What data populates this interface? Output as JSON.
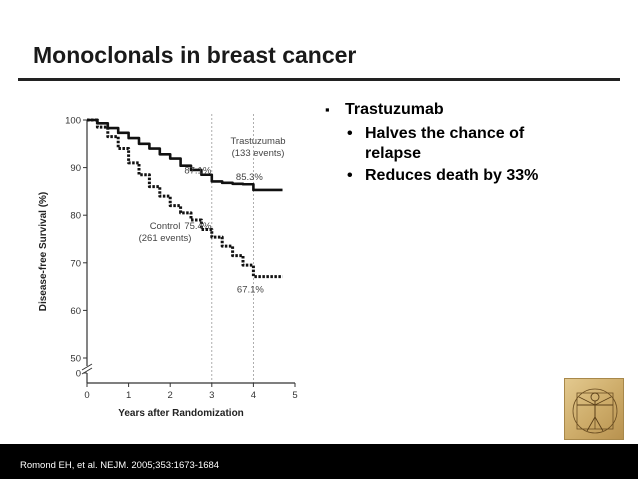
{
  "slide": {
    "title": "Monoclonals in breast cancer",
    "footer": "Romond EH, et al. NEJM. 2005;353:1673-1684"
  },
  "bullets": {
    "main": "Trastuzumab",
    "sub": [
      "Halves the chance of relapse",
      "Reduces death by 33%"
    ]
  },
  "thumbnail": {
    "icon": "vitruvian-man-sketch"
  },
  "colors": {
    "background": "#ffffff",
    "footer": "#000000",
    "text": "#1a1a1a"
  },
  "chart_data": {
    "type": "line",
    "xlabel": "Years after Randomization",
    "ylabel": "Disease-free Survival (%)",
    "xlim": [
      0,
      5
    ],
    "ylim": [
      50,
      100
    ],
    "x_ticks": [
      "0",
      "1",
      "2",
      "3",
      "4",
      "5"
    ],
    "y_ticks": [
      "0",
      "50",
      "60",
      "70",
      "80",
      "90",
      "100"
    ],
    "axis_break": true,
    "reference_lines_x": [
      3,
      4
    ],
    "series": [
      {
        "name": "Trastuzumab",
        "label": "Trastuzumab\n(133 events)",
        "style": "solid",
        "x": [
          0,
          0.25,
          0.5,
          0.75,
          1,
          1.25,
          1.5,
          1.75,
          2,
          2.25,
          2.5,
          2.75,
          3,
          3.25,
          3.5,
          3.75,
          4,
          4.3,
          4.7
        ],
        "y": [
          100,
          99.3,
          98.3,
          97.3,
          96.2,
          95.0,
          94.0,
          92.8,
          91.9,
          90.4,
          89.5,
          88.5,
          87.1,
          86.8,
          86.6,
          86.5,
          85.3,
          85.3,
          85.3
        ]
      },
      {
        "name": "Control",
        "label": "Control\n(261 events)",
        "style": "dotted",
        "x": [
          0,
          0.25,
          0.5,
          0.75,
          1,
          1.25,
          1.5,
          1.75,
          2,
          2.25,
          2.5,
          2.75,
          3,
          3.25,
          3.5,
          3.75,
          4,
          4.3,
          4.7
        ],
        "y": [
          100,
          98.5,
          96.5,
          94.0,
          91.0,
          88.5,
          86.0,
          84.0,
          82.0,
          80.5,
          79.0,
          77.0,
          75.4,
          73.5,
          71.5,
          69.5,
          67.1,
          67.1,
          67.1
        ]
      }
    ],
    "annotations": [
      {
        "x": 3,
        "y": 87.1,
        "text": "87.1%"
      },
      {
        "x": 4,
        "y": 85.3,
        "text": "85.3%"
      },
      {
        "x": 3,
        "y": 75.4,
        "text": "75.4%"
      },
      {
        "x": 4,
        "y": 67.1,
        "text": "67.1%"
      }
    ]
  }
}
